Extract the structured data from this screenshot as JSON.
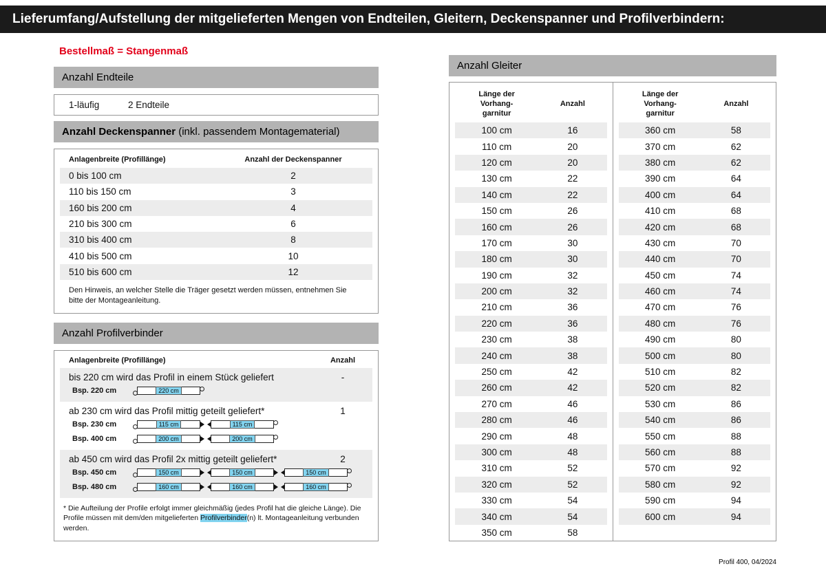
{
  "header": {
    "title": "Lieferumfang/Aufstellung der mitgelieferten Mengen von Endteilen, Gleitern, Deckenspanner und Profilverbindern:"
  },
  "note": {
    "text": "Bestellmaß = Stangenmaß"
  },
  "colors": {
    "accent_red": "#e2001a",
    "section_header_gray": "#b3b3b3",
    "zebra_gray": "#ececec",
    "highlight_cyan": "#82d4f0",
    "titlebar_black": "#1b1b1b"
  },
  "endteile": {
    "header": "Anzahl Endteile",
    "row": {
      "type": "1-läufig",
      "value": "2 Endteile"
    }
  },
  "deckenspanner": {
    "header_bold": "Anzahl Deckenspanner",
    "header_normal": " (inkl. passendem Montagematerial)",
    "col_width": "Anlagenbreite (Profillänge)",
    "col_count": "Anzahl der Deckenspanner",
    "rows": [
      {
        "range": "0 bis 100 cm",
        "count": "2"
      },
      {
        "range": "110 bis 150 cm",
        "count": "3"
      },
      {
        "range": "160 bis 200 cm",
        "count": "4"
      },
      {
        "range": "210 bis 300 cm",
        "count": "6"
      },
      {
        "range": "310 bis 400 cm",
        "count": "8"
      },
      {
        "range": "410 bis 500 cm",
        "count": "10"
      },
      {
        "range": "510 bis 600 cm",
        "count": "12"
      }
    ],
    "note": "Den Hinweis, an welcher Stelle die Träger gesetzt werden müssen, entnehmen Sie bitte der Montageanleitung."
  },
  "profilverbinder": {
    "header": "Anzahl Profilverbinder",
    "col_width": "Anlagenbreite (Profillänge)",
    "col_count": "Anzahl",
    "sections": [
      {
        "text": "bis 220 cm wird das Profil in einem Stück geliefert",
        "count": "-",
        "examples": [
          {
            "label": "Bsp. 220 cm",
            "segments": [
              "220 cm"
            ]
          }
        ]
      },
      {
        "text": "ab 230 cm wird das Profil mittig geteilt geliefert*",
        "count": "1",
        "examples": [
          {
            "label": "Bsp. 230 cm",
            "segments": [
              "115 cm",
              "115 cm"
            ]
          },
          {
            "label": "Bsp. 400 cm",
            "segments": [
              "200 cm",
              "200 cm"
            ]
          }
        ]
      },
      {
        "text": "ab 450 cm wird das Profil 2x mittig geteilt geliefert*",
        "count": "2",
        "examples": [
          {
            "label": "Bsp. 450 cm",
            "segments": [
              "150 cm",
              "150 cm",
              "150 cm"
            ]
          },
          {
            "label": "Bsp. 480 cm",
            "segments": [
              "160 cm",
              "160 cm",
              "160 cm"
            ]
          }
        ]
      }
    ],
    "footnote_pre": "* Die Aufteilung der Profile erfolgt immer gleichmäßig (jedes Profil hat die gleiche Länge). Die Profile müssen mit dem/den mitgelieferten ",
    "footnote_highlight": "Profilverbinder",
    "footnote_post": "(n) lt. Montageanleitung verbunden werden."
  },
  "gleiter": {
    "header": "Anzahl Gleiter",
    "col_length": "Länge der\nVorhang-\ngarnitur",
    "col_count": "Anzahl",
    "left_rows": [
      {
        "length": "100 cm",
        "count": "16"
      },
      {
        "length": "110 cm",
        "count": "20"
      },
      {
        "length": "120 cm",
        "count": "20"
      },
      {
        "length": "130 cm",
        "count": "22"
      },
      {
        "length": "140 cm",
        "count": "22"
      },
      {
        "length": "150 cm",
        "count": "26"
      },
      {
        "length": "160 cm",
        "count": "26"
      },
      {
        "length": "170 cm",
        "count": "30"
      },
      {
        "length": "180 cm",
        "count": "30"
      },
      {
        "length": "190 cm",
        "count": "32"
      },
      {
        "length": "200 cm",
        "count": "32"
      },
      {
        "length": "210 cm",
        "count": "36"
      },
      {
        "length": "220 cm",
        "count": "36"
      },
      {
        "length": "230 cm",
        "count": "38"
      },
      {
        "length": "240 cm",
        "count": "38"
      },
      {
        "length": "250 cm",
        "count": "42"
      },
      {
        "length": "260 cm",
        "count": "42"
      },
      {
        "length": "270 cm",
        "count": "46"
      },
      {
        "length": "280 cm",
        "count": "46"
      },
      {
        "length": "290 cm",
        "count": "48"
      },
      {
        "length": "300 cm",
        "count": "48"
      },
      {
        "length": "310 cm",
        "count": "52"
      },
      {
        "length": "320 cm",
        "count": "52"
      },
      {
        "length": "330 cm",
        "count": "54"
      },
      {
        "length": "340 cm",
        "count": "54"
      },
      {
        "length": "350 cm",
        "count": "58"
      }
    ],
    "right_rows": [
      {
        "length": "360 cm",
        "count": "58"
      },
      {
        "length": "370 cm",
        "count": "62"
      },
      {
        "length": "380 cm",
        "count": "62"
      },
      {
        "length": "390 cm",
        "count": "64"
      },
      {
        "length": "400 cm",
        "count": "64"
      },
      {
        "length": "410 cm",
        "count": "68"
      },
      {
        "length": "420 cm",
        "count": "68"
      },
      {
        "length": "430 cm",
        "count": "70"
      },
      {
        "length": "440 cm",
        "count": "70"
      },
      {
        "length": "450 cm",
        "count": "74"
      },
      {
        "length": "460 cm",
        "count": "74"
      },
      {
        "length": "470 cm",
        "count": "76"
      },
      {
        "length": "480 cm",
        "count": "76"
      },
      {
        "length": "490 cm",
        "count": "80"
      },
      {
        "length": "500 cm",
        "count": "80"
      },
      {
        "length": "510 cm",
        "count": "82"
      },
      {
        "length": "520 cm",
        "count": "82"
      },
      {
        "length": "530 cm",
        "count": "86"
      },
      {
        "length": "540 cm",
        "count": "86"
      },
      {
        "length": "550 cm",
        "count": "88"
      },
      {
        "length": "560 cm",
        "count": "88"
      },
      {
        "length": "570 cm",
        "count": "92"
      },
      {
        "length": "580 cm",
        "count": "92"
      },
      {
        "length": "590 cm",
        "count": "94"
      },
      {
        "length": "600 cm",
        "count": "94"
      }
    ]
  },
  "footer": {
    "text": "Profil 400, 04/2024"
  }
}
